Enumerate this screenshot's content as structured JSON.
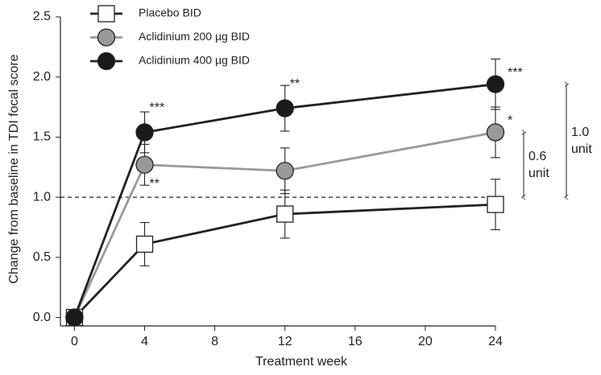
{
  "chart_data": {
    "type": "line",
    "x_label": "Treatment week",
    "y_label": "Change from baseline in TDI focal score",
    "x": [
      0,
      4,
      12,
      24
    ],
    "series": [
      {
        "name": "Placebo BID",
        "color": "#222222",
        "marker": "square",
        "marker_fill": "#ffffff",
        "values": [
          0,
          0.61,
          0.86,
          0.94
        ],
        "errors": [
          0,
          0.18,
          0.2,
          0.21
        ],
        "significance": [
          null,
          null,
          null,
          null
        ]
      },
      {
        "name": "Aclidinium 200 µg BID",
        "color": "#999999",
        "marker": "circle",
        "marker_fill": "#999999",
        "values": [
          0,
          1.27,
          1.22,
          1.54
        ],
        "errors": [
          0,
          0.17,
          0.19,
          0.21
        ],
        "significance": [
          null,
          "**",
          null,
          "*"
        ]
      },
      {
        "name": "Aclidinium 400 µg BID",
        "color": "#222222",
        "marker": "circle",
        "marker_fill": "#1a1a1a",
        "values": [
          0,
          1.54,
          1.74,
          1.94
        ],
        "errors": [
          0,
          0.17,
          0.19,
          0.21
        ],
        "significance": [
          null,
          "***",
          "**",
          "***"
        ]
      }
    ],
    "reference_line": 1.0,
    "brackets": [
      {
        "series": 1,
        "label": [
          "0.6",
          "unit"
        ]
      },
      {
        "series": 2,
        "label": [
          "1.0",
          "unit"
        ]
      }
    ],
    "xlim": [
      -0.8,
      24
    ],
    "ylim": [
      -0.07,
      2.5
    ],
    "xticks": [
      0,
      4,
      8,
      12,
      16,
      20,
      24
    ],
    "yticks": [
      {
        "value": 0,
        "label": "0.0"
      },
      {
        "value": 0.5,
        "label": "0.5"
      },
      {
        "value": 1,
        "label": "1.0"
      },
      {
        "value": 1.5,
        "label": "1.5"
      },
      {
        "value": 2,
        "label": "2.0"
      },
      {
        "value": 2.5,
        "label": "2.5"
      }
    ],
    "legend": "upper left"
  }
}
